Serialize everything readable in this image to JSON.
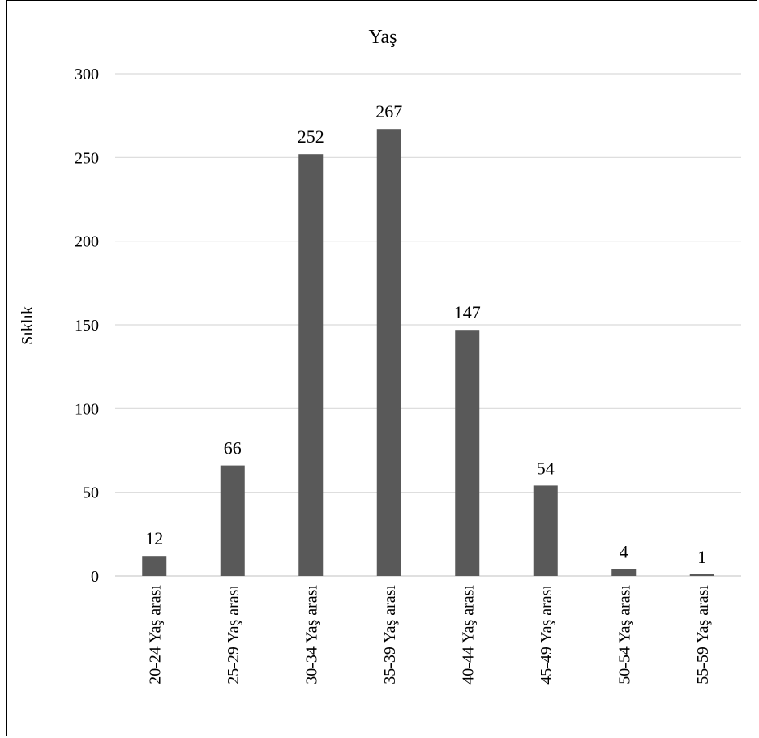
{
  "chart_data": {
    "type": "bar",
    "title": "Yaş",
    "xlabel": "",
    "ylabel": "Sıklık",
    "categories": [
      "20-24 Yaş arası",
      "25-29 Yaş arası",
      "30-34 Yaş arası",
      "35-39 Yaş arası",
      "40-44 Yaş arası",
      "45-49 Yaş arası",
      "50-54 Yaş arası",
      "55-59 Yaş arası"
    ],
    "values": [
      12,
      66,
      252,
      267,
      147,
      54,
      4,
      1
    ],
    "data_labels": [
      "12",
      "66",
      "252",
      "267",
      "147",
      "54",
      "4",
      "1"
    ],
    "ylim": [
      0,
      300
    ],
    "yticks": [
      0,
      50,
      100,
      150,
      200,
      250,
      300
    ],
    "ytick_labels": [
      "0",
      "50",
      "100",
      "150",
      "200",
      "250",
      "300"
    ],
    "grid": "horizontal",
    "legend": "none",
    "colors": {
      "bar": "#595959",
      "grid": "#d9d9d9",
      "axis": "#d9d9d9",
      "text": "#000000",
      "border": "#000000"
    }
  }
}
